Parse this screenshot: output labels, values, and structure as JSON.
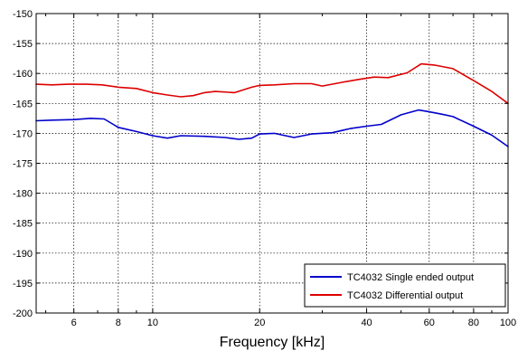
{
  "chart_data": {
    "type": "line",
    "title": "",
    "xlabel": "Frequency [kHz]",
    "ylabel": "",
    "x_scale": "log",
    "xlim": [
      4.7,
      100
    ],
    "ylim": [
      -200,
      -150
    ],
    "x_ticks": [
      6,
      8,
      10,
      20,
      40,
      60,
      80,
      100
    ],
    "y_ticks": [
      -200,
      -195,
      -190,
      -185,
      -180,
      -175,
      -170,
      -165,
      -160,
      -155,
      -150
    ],
    "grid": true,
    "legend_position": "bottom-right",
    "series": [
      {
        "name": "TC4032 Single ended output",
        "color": "#0000cc",
        "x": [
          4.7,
          5.2,
          6.0,
          6.7,
          7.3,
          8.0,
          9.0,
          10.0,
          11.0,
          12.0,
          14.0,
          16.0,
          17.5,
          19.0,
          20.0,
          22.0,
          25.0,
          28.0,
          32.0,
          36.0,
          40.0,
          44.0,
          50.0,
          56.0,
          60.0,
          65.0,
          70.0,
          80.0,
          90.0,
          100.0
        ],
        "values": [
          -167.9,
          -167.8,
          -167.7,
          -167.5,
          -167.6,
          -169.0,
          -169.7,
          -170.4,
          -170.8,
          -170.4,
          -170.5,
          -170.7,
          -171.0,
          -170.8,
          -170.1,
          -170.0,
          -170.7,
          -170.1,
          -169.9,
          -169.2,
          -168.8,
          -168.5,
          -166.9,
          -166.1,
          -166.4,
          -166.8,
          -167.2,
          -168.8,
          -170.3,
          -172.2
        ]
      },
      {
        "name": "TC4032 Differential output",
        "color": "#dd0000",
        "x": [
          4.7,
          5.2,
          5.8,
          6.5,
          7.2,
          8.0,
          9.0,
          10.0,
          11.0,
          12.0,
          13.0,
          14.0,
          15.0,
          17.0,
          19.0,
          20.0,
          22.0,
          25.0,
          28.0,
          30.0,
          34.0,
          38.0,
          42.0,
          46.0,
          52.0,
          57.0,
          62.0,
          70.0,
          80.0,
          90.0,
          100.0
        ],
        "values": [
          -161.8,
          -161.9,
          -161.8,
          -161.8,
          -161.9,
          -162.3,
          -162.5,
          -163.2,
          -163.6,
          -163.9,
          -163.7,
          -163.2,
          -163.0,
          -163.2,
          -162.3,
          -162.0,
          -161.9,
          -161.7,
          -161.7,
          -162.1,
          -161.5,
          -161.0,
          -160.6,
          -160.7,
          -159.9,
          -158.4,
          -158.6,
          -159.2,
          -161.2,
          -163.0,
          -165.0
        ]
      }
    ]
  }
}
